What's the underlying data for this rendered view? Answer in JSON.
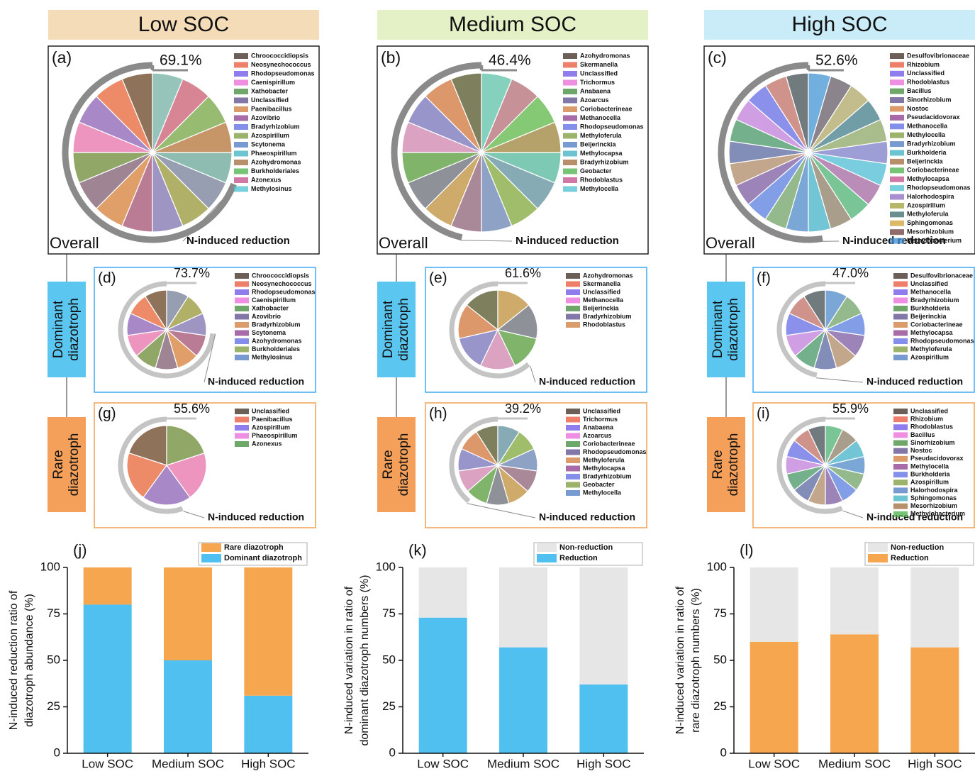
{
  "columns": [
    {
      "header": "Low SOC",
      "color": "#f5dcb8",
      "fill": "#f3c9a0"
    },
    {
      "header": "Medium SOC",
      "color": "#e4f1c6",
      "fill": "#cfe7a6"
    },
    {
      "header": "High SOC",
      "color": "#c9ecf8",
      "fill": "#b3def0"
    }
  ],
  "row_labels": [
    [
      "Dominant",
      "diazotroph"
    ],
    [
      "Rare",
      "diazotroph"
    ]
  ],
  "palette": [
    "#3a2a20",
    "#e8553a",
    "#6a52e8",
    "#e86ad8",
    "#3f8a3a",
    "#5a4a8a",
    "#d07a3a",
    "#8a3a8a",
    "#5a6ae0",
    "#7a9a3a",
    "#4a7ac0",
    "#3ab0c0",
    "#a06a3a",
    "#4ab04a",
    "#c04a8a",
    "#4ac0d0",
    "#8a6ac0",
    "#a0a03a",
    "#3a6a6a",
    "#d0a03a",
    "#6a3a3a",
    "#3a8ad0"
  ],
  "chart_data": [
    {
      "type": "pie",
      "label": "(a)",
      "value": 69.1,
      "value_label": "69.1%",
      "annotation": "N-induced reduction",
      "footer": "Overall",
      "categories": [
        "Chroococcidiopsis",
        "Neosynechococcus",
        "Rhodopseudomonas",
        "Caenispirillum",
        "Xathobacter",
        "Unclassified",
        "Paenibacillus",
        "Azovibrio",
        "Bradyrhizobium",
        "Azospirillum",
        "Scytonema",
        "Phaeospirillum",
        "Azohydromonas",
        "Burkholderiales",
        "Azonexus",
        "Methylosinus"
      ]
    },
    {
      "type": "pie",
      "label": "(b)",
      "value": 46.4,
      "value_label": "46.4%",
      "annotation": "N-induced reduction",
      "footer": "Overall",
      "categories": [
        "Azohydromonas",
        "Skermanella",
        "Unclassified",
        "Trichormus",
        "Anabaena",
        "Azoarcus",
        "Coriobacterineae",
        "Methanocella",
        "Rhodopseudomonas",
        "Methyloferula",
        "Beijerinckia",
        "Methylocapsa",
        "Bradyrhizobium",
        "Geobacter",
        "Rhodoblastus",
        "Methylocella"
      ]
    },
    {
      "type": "pie",
      "label": "(c)",
      "value": 52.6,
      "value_label": "52.6%",
      "annotation": "N-induced reduction",
      "footer": "Overall",
      "categories": [
        "Desulfovibrionaceae",
        "Rhizobium",
        "Unclassified",
        "Rhodoblastus",
        "Bacillus",
        "Sinorhizobium",
        "Nostoc",
        "Pseudacidovorax",
        "Methanocella",
        "Methylocella",
        "Bradyrhizobium",
        "Burkholderia",
        "Beijerinckia",
        "Coriobacterineae",
        "Methylocapsa",
        "Rhodopseudomonas",
        "Halorhodospira",
        "Azospirillum",
        "Methyloferula",
        "Sphingomonas",
        "Mesorhizobium",
        "Methylobacterium"
      ]
    },
    {
      "type": "pie",
      "label": "(d)",
      "value": 73.7,
      "value_label": "73.7%",
      "annotation": "N-induced reduction",
      "categories": [
        "Chroococcidiopsis",
        "Neosynechococcus",
        "Rhodopseudomonas",
        "Caenispirillum",
        "Xathobacter",
        "Azovibrio",
        "Bradyrhizobium",
        "Scytonema",
        "Azohydromonas",
        "Burkholderiales",
        "Methylosinus"
      ]
    },
    {
      "type": "pie",
      "label": "(e)",
      "value": 61.6,
      "value_label": "61.6%",
      "annotation": "N-induced reduction",
      "categories": [
        "Azohydromonas",
        "Skermanella",
        "Unclassified",
        "Methanocella",
        "Beijerinckia",
        "Bradyrhizobium",
        "Rhodoblastus"
      ]
    },
    {
      "type": "pie",
      "label": "(f)",
      "value": 47.0,
      "value_label": "47.0%",
      "annotation": "N-induced reduction",
      "categories": [
        "Desulfovibrionaceae",
        "Unclassified",
        "Methanocella",
        "Bradyrhizobium",
        "Burkholderia",
        "Beijerinckia",
        "Coriobacterineae",
        "Methylocapsa",
        "Rhodopseudomonas",
        "Methyloferula",
        "Azospirillum"
      ]
    },
    {
      "type": "pie",
      "label": "(g)",
      "value": 55.6,
      "value_label": "55.6%",
      "annotation": "N-induced reduction",
      "categories": [
        "Unclassified",
        "Paenibacillus",
        "Azospirillum",
        "Phaeospirillum",
        "Azonexus"
      ]
    },
    {
      "type": "pie",
      "label": "(h)",
      "value": 39.2,
      "value_label": "39.2%",
      "annotation": "N-induced reduction",
      "categories": [
        "Unclassified",
        "Trichormus",
        "Anabaena",
        "Azoarcus",
        "Coriobacterineae",
        "Rhodopseudomonas",
        "Methyloferula",
        "Methylocapsa",
        "Bradyrhizobium",
        "Geobacter",
        "Methylocella"
      ]
    },
    {
      "type": "pie",
      "label": "(i)",
      "value": 55.9,
      "value_label": "55.9%",
      "annotation": "N-induced reduction",
      "categories": [
        "Unclassified",
        "Rhizobium",
        "Rhodoblastus",
        "Bacillus",
        "Sinorhizobium",
        "Nostoc",
        "Pseudacidovorax",
        "Methylocella",
        "Burkholderia",
        "Azospirillum",
        "Halorhodospira",
        "Sphingomonas",
        "Mesorhizobium",
        "Methylobacterium"
      ]
    },
    {
      "type": "bar",
      "label": "(j)",
      "ylabel": [
        "N-induced reduction ratio of",
        "diazotroph abundance (%)"
      ],
      "categories": [
        "Low SOC",
        "Medium SOC",
        "High SOC"
      ],
      "ylim": [
        0,
        100
      ],
      "yticks": [
        0,
        25,
        50,
        75,
        100
      ],
      "series": [
        {
          "name": "Dominant diazotroph",
          "color": "#4fc0f0",
          "values": [
            80,
            50,
            31
          ]
        },
        {
          "name": "Rare diazotroph",
          "color": "#f5a64e",
          "values": [
            20,
            50,
            69
          ]
        }
      ]
    },
    {
      "type": "bar",
      "label": "(k)",
      "ylabel": [
        "N-induced variation in ratio of",
        "dominant diazotroph numbers (%)"
      ],
      "categories": [
        "Low SOC",
        "Medium SOC",
        "High SOC"
      ],
      "ylim": [
        0,
        100
      ],
      "yticks": [
        0,
        25,
        50,
        75,
        100
      ],
      "series": [
        {
          "name": "Reduction",
          "color": "#4fc0f0",
          "values": [
            73,
            57,
            37
          ]
        },
        {
          "name": "Non-reduction",
          "color": "#e6e6e6",
          "values": [
            27,
            43,
            63
          ]
        }
      ]
    },
    {
      "type": "bar",
      "label": "(l)",
      "ylabel": [
        "N-induced variation in ratio of",
        "rare diazotroph numbers (%)"
      ],
      "categories": [
        "Low SOC",
        "Medium SOC",
        "High SOC"
      ],
      "ylim": [
        0,
        100
      ],
      "yticks": [
        0,
        25,
        50,
        75,
        100
      ],
      "series": [
        {
          "name": "Reduction",
          "color": "#f5a64e",
          "values": [
            60,
            64,
            57
          ]
        },
        {
          "name": "Non-reduction",
          "color": "#e6e6e6",
          "values": [
            40,
            36,
            43
          ]
        }
      ]
    }
  ]
}
